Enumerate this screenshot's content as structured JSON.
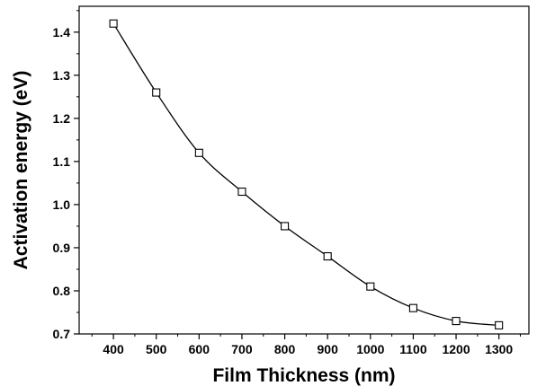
{
  "chart_data": {
    "type": "line",
    "title": "",
    "xlabel": "Film Thickness (nm)",
    "ylabel": "Activation energy (eV)",
    "x": [
      400,
      500,
      600,
      700,
      800,
      900,
      1000,
      1100,
      1200,
      1300
    ],
    "series": [
      {
        "values": [
          1.42,
          1.26,
          1.12,
          1.03,
          0.95,
          0.88,
          0.81,
          0.76,
          0.73,
          0.72
        ],
        "marker": "open-square",
        "color": "#000000"
      }
    ],
    "xticks": [
      400,
      500,
      600,
      700,
      800,
      900,
      1000,
      1100,
      1200,
      1300
    ],
    "xtick_labels": [
      "400",
      "500",
      "600",
      "700",
      "800",
      "900",
      "1000",
      "1100",
      "1200",
      "1300"
    ],
    "yticks": [
      0.7,
      0.8,
      0.9,
      1.0,
      1.1,
      1.2,
      1.3,
      1.4
    ],
    "ytick_labels": [
      "0.7",
      "0.8",
      "0.9",
      "1.0",
      "1.1",
      "1.2",
      "1.3",
      "1.4"
    ],
    "xlim": [
      320,
      1370
    ],
    "ylim": [
      0.7,
      1.46
    ],
    "grid": false,
    "legend": "none"
  }
}
